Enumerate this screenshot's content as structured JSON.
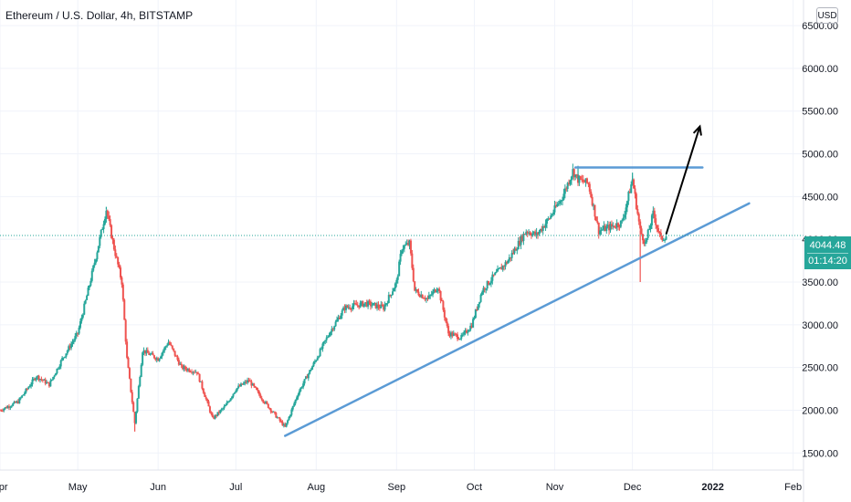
{
  "header": {
    "title": "Ethereum / U.S. Dollar, 4h, BITSTAMP",
    "currency": "USD"
  },
  "last_price": {
    "value": "4044.48",
    "countdown": "01:14:20"
  },
  "colors": {
    "up": "#26a69a",
    "down": "#ef5350",
    "trendline": "#5b9bd5",
    "arrow": "#000000",
    "grid": "#f0f3fa"
  },
  "chart_data": {
    "type": "candlestick",
    "interval": "4h",
    "yticks": [
      1500,
      2000,
      2500,
      3000,
      3500,
      4000,
      4500,
      5000,
      5500,
      6000,
      6500
    ],
    "ytick_labels": [
      "1500.00",
      "2000.00",
      "2500.00",
      "3000.00",
      "3500.00",
      "4000.00",
      "4500.00",
      "5000.00",
      "5500.00",
      "6000.00",
      "6500.00"
    ],
    "ylim": [
      1300,
      6800
    ],
    "xlim": [
      "2021-04-01",
      "2022-02-05"
    ],
    "xticks": [
      {
        "date": "2021-04-01",
        "label": "Apr",
        "bold": false
      },
      {
        "date": "2021-05-01",
        "label": "May",
        "bold": false
      },
      {
        "date": "2021-06-01",
        "label": "Jun",
        "bold": false
      },
      {
        "date": "2021-07-01",
        "label": "Jul",
        "bold": false
      },
      {
        "date": "2021-08-01",
        "label": "Aug",
        "bold": false
      },
      {
        "date": "2021-09-01",
        "label": "Sep",
        "bold": false
      },
      {
        "date": "2021-10-01",
        "label": "Oct",
        "bold": false
      },
      {
        "date": "2021-11-01",
        "label": "Nov",
        "bold": false
      },
      {
        "date": "2021-12-01",
        "label": "Dec",
        "bold": false
      },
      {
        "date": "2022-01-01",
        "label": "2022",
        "bold": true
      },
      {
        "date": "2022-02-01",
        "label": "Feb",
        "bold": false
      }
    ],
    "price_path": [
      [
        "2021-04-01",
        2000
      ],
      [
        "2021-04-08",
        2100
      ],
      [
        "2021-04-15",
        2400
      ],
      [
        "2021-04-20",
        2300
      ],
      [
        "2021-04-25",
        2600
      ],
      [
        "2021-05-01",
        2900
      ],
      [
        "2021-05-05",
        3400
      ],
      [
        "2021-05-08",
        3800
      ],
      [
        "2021-05-12",
        4350
      ],
      [
        "2021-05-15",
        3900
      ],
      [
        "2021-05-18",
        3500
      ],
      [
        "2021-05-20",
        2600
      ],
      [
        "2021-05-23",
        1850
      ],
      [
        "2021-05-26",
        2700
      ],
      [
        "2021-06-01",
        2600
      ],
      [
        "2021-06-05",
        2800
      ],
      [
        "2021-06-10",
        2500
      ],
      [
        "2021-06-16",
        2450
      ],
      [
        "2021-06-22",
        1900
      ],
      [
        "2021-06-27",
        2050
      ],
      [
        "2021-07-01",
        2250
      ],
      [
        "2021-07-06",
        2350
      ],
      [
        "2021-07-12",
        2100
      ],
      [
        "2021-07-20",
        1800
      ],
      [
        "2021-07-25",
        2200
      ],
      [
        "2021-08-01",
        2600
      ],
      [
        "2021-08-06",
        2900
      ],
      [
        "2021-08-12",
        3200
      ],
      [
        "2021-08-20",
        3250
      ],
      [
        "2021-08-27",
        3200
      ],
      [
        "2021-09-01",
        3500
      ],
      [
        "2021-09-03",
        3900
      ],
      [
        "2021-09-06",
        3950
      ],
      [
        "2021-09-08",
        3400
      ],
      [
        "2021-09-13",
        3300
      ],
      [
        "2021-09-17",
        3450
      ],
      [
        "2021-09-21",
        2900
      ],
      [
        "2021-09-26",
        2850
      ],
      [
        "2021-09-30",
        3000
      ],
      [
        "2021-10-04",
        3400
      ],
      [
        "2021-10-08",
        3550
      ],
      [
        "2021-10-14",
        3750
      ],
      [
        "2021-10-21",
        4100
      ],
      [
        "2021-10-25",
        4050
      ],
      [
        "2021-10-30",
        4250
      ],
      [
        "2021-11-04",
        4500
      ],
      [
        "2021-11-08",
        4800
      ],
      [
        "2021-11-10",
        4700
      ],
      [
        "2021-11-14",
        4650
      ],
      [
        "2021-11-18",
        4100
      ],
      [
        "2021-11-23",
        4150
      ],
      [
        "2021-11-27",
        4200
      ],
      [
        "2021-12-01",
        4700
      ],
      [
        "2021-12-04",
        4100
      ],
      [
        "2021-12-06",
        3950
      ],
      [
        "2021-12-09",
        4300
      ],
      [
        "2021-12-12",
        4000
      ],
      [
        "2021-12-14",
        4044.48
      ]
    ],
    "wicks": [
      {
        "date": "2021-05-23",
        "low": 1750
      },
      {
        "date": "2021-12-04",
        "low": 3500
      },
      {
        "date": "2021-12-01",
        "high": 4780
      },
      {
        "date": "2021-11-10",
        "high": 4860
      },
      {
        "date": "2021-05-12",
        "high": 4380
      }
    ],
    "annotations": [
      {
        "type": "trendline",
        "name": "ascending-support-line",
        "points": [
          [
            "2021-07-20",
            1700
          ],
          [
            "2022-01-15",
            4420
          ]
        ]
      },
      {
        "type": "horizontal-segment",
        "name": "resistance-line",
        "points": [
          [
            "2021-11-09",
            4840
          ],
          [
            "2021-12-28",
            4840
          ]
        ]
      },
      {
        "type": "arrow",
        "name": "breakout-projection-arrow",
        "points": [
          [
            "2021-12-14",
            4060
          ],
          [
            "2021-12-27",
            5320
          ]
        ]
      },
      {
        "type": "last-price-line",
        "name": "last-price-dotted-line",
        "value": 4044.48
      }
    ]
  }
}
